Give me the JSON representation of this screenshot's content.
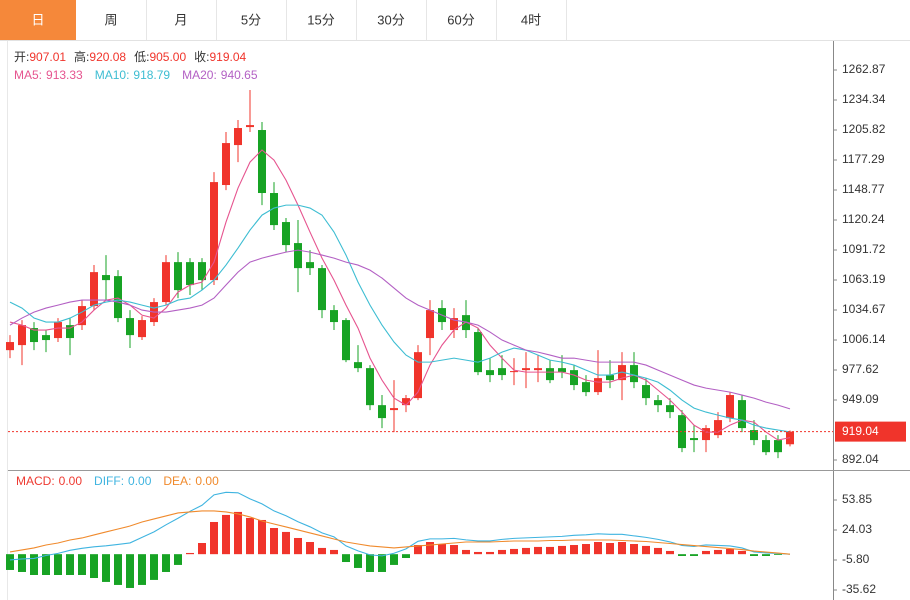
{
  "tabs": {
    "items": [
      "日",
      "周",
      "月",
      "5分",
      "15分",
      "30分",
      "60分",
      "4时"
    ],
    "active": 0,
    "active_color": "#f5883a"
  },
  "chart_data": [
    {
      "type": "candlestick",
      "info": [
        {
          "label": "开:",
          "value": "907.01"
        },
        {
          "label": "高:",
          "value": "920.08"
        },
        {
          "label": "低:",
          "value": "905.00"
        },
        {
          "label": "收:",
          "value": "919.04"
        }
      ],
      "up_color": "#f0342b",
      "down_color": "#17a324",
      "open": [
        996.5,
        1001.3,
        1017.5,
        1010.8,
        1008.0,
        1020.3,
        1020.3,
        1038.4,
        1067.9,
        1066.9,
        1027.0,
        1008.9,
        1023.2,
        1042.2,
        1080.2,
        1080.2,
        1080.2,
        1063.1,
        1153.5,
        1191.5,
        1208.6,
        1205.8,
        1145.9,
        1118.3,
        1098.3,
        1080.2,
        1074.5,
        1034.6,
        1025.1,
        985.1,
        979.4,
        944.2,
        939.5,
        944.2,
        950.9,
        1008.0,
        1036.5,
        1015.6,
        1029.8,
        1013.7,
        977.5,
        979.4,
        975.6,
        977.5,
        977.5,
        979.4,
        979.4,
        977.5,
        966.1,
        956.6,
        972.8,
        968.0,
        982.3,
        963.3,
        949.0,
        944.2,
        934.7,
        912.9,
        911.0,
        915.7,
        931.9,
        949.0,
        920.5,
        911.0,
        911.0,
        907.01
      ],
      "high": [
        1010.8,
        1025.1,
        1023.2,
        1015.6,
        1027.0,
        1027.0,
        1044.1,
        1077.4,
        1086.9,
        1072.6,
        1034.6,
        1028.9,
        1046.0,
        1086.9,
        1089.7,
        1084.0,
        1084.0,
        1165.8,
        1203.9,
        1215.3,
        1243.8,
        1213.4,
        1156.3,
        1122.1,
        1120.2,
        1091.6,
        1077.4,
        1039.3,
        1027.0,
        1001.3,
        982.3,
        953.8,
        968.0,
        953.8,
        1001.3,
        1044.1,
        1044.1,
        1036.5,
        1044.1,
        1017.5,
        988.9,
        991.8,
        988.9,
        994.6,
        991.8,
        987.0,
        991.8,
        982.3,
        972.8,
        996.5,
        987.0,
        994.6,
        994.6,
        969.9,
        953.8,
        950.9,
        939.5,
        925.2,
        925.2,
        937.6,
        956.6,
        953.8,
        930.0,
        915.7,
        915.7,
        920.08
      ],
      "low": [
        988.9,
        982.3,
        996.5,
        994.6,
        1004.2,
        991.8,
        1015.6,
        1034.6,
        1044.1,
        1023.2,
        998.5,
        1006.1,
        1019.4,
        1039.3,
        1046.0,
        1048.9,
        1053.6,
        1058.4,
        1148.7,
        1175.3,
        1203.9,
        1134.4,
        1110.7,
        1089.7,
        1051.7,
        1067.9,
        1027.0,
        1015.6,
        985.1,
        975.6,
        939.5,
        922.4,
        918.6,
        937.6,
        949.0,
        991.8,
        1015.6,
        1008.0,
        1008.0,
        972.8,
        966.1,
        968.0,
        963.3,
        960.4,
        966.1,
        965.2,
        969.9,
        958.5,
        952.8,
        953.8,
        960.4,
        949.0,
        960.4,
        944.2,
        937.6,
        931.9,
        899.5,
        899.5,
        899.5,
        912.9,
        928.1,
        918.6,
        906.2,
        896.7,
        893.8,
        905.0
      ],
      "close": [
        1004.2,
        1020.3,
        1004.2,
        1006.1,
        1023.2,
        1008.0,
        1038.4,
        1070.7,
        1063.1,
        1027.0,
        1010.8,
        1025.1,
        1042.2,
        1080.2,
        1053.6,
        1058.4,
        1063.1,
        1156.3,
        1193.4,
        1207.7,
        1210.5,
        1145.9,
        1115.4,
        1096.4,
        1074.5,
        1074.5,
        1034.6,
        1023.2,
        987.0,
        979.4,
        944.2,
        931.9,
        941.4,
        950.9,
        994.6,
        1034.6,
        1023.2,
        1027.0,
        1015.6,
        975.6,
        972.8,
        972.8,
        976.6,
        979.4,
        979.4,
        968.0,
        975.6,
        963.3,
        956.6,
        969.9,
        968.0,
        982.3,
        966.1,
        950.9,
        944.2,
        937.6,
        903.4,
        911.0,
        922.4,
        930.0,
        953.8,
        922.4,
        911.0,
        899.5,
        899.5,
        919.04
      ],
      "series": [
        {
          "name": "MA5:",
          "value_label": "913.33",
          "color": "#e6548f",
          "values": [
            1023.2,
            1020.3,
            1015.6,
            1015.6,
            1017.5,
            1017.5,
            1023.2,
            1034.6,
            1044.1,
            1046.0,
            1039.3,
            1029.8,
            1027.0,
            1036.5,
            1051.7,
            1058.4,
            1061.2,
            1080.2,
            1118.3,
            1150.6,
            1175.3,
            1186.8,
            1177.2,
            1158.2,
            1134.4,
            1108.8,
            1084.0,
            1063.1,
            1039.3,
            1017.5,
            988.9,
            968.0,
            950.9,
            944.2,
            956.6,
            982.3,
            1001.3,
            1015.6,
            1023.2,
            1017.5,
            1001.3,
            988.9,
            977.5,
            975.6,
            975.6,
            975.6,
            975.6,
            972.8,
            968.0,
            966.1,
            966.1,
            969.9,
            972.8,
            968.0,
            958.5,
            949.0,
            937.6,
            925.2,
            918.6,
            918.6,
            925.2,
            930.0,
            928.1,
            918.6,
            911.0,
            913.33
          ]
        },
        {
          "name": "MA10:",
          "value_label": "918.79",
          "color": "#3dbdd2",
          "values": [
            1042.2,
            1036.5,
            1027.0,
            1023.2,
            1023.2,
            1027.0,
            1032.7,
            1039.3,
            1042.2,
            1044.1,
            1042.2,
            1039.3,
            1036.5,
            1039.3,
            1044.1,
            1046.0,
            1053.6,
            1063.1,
            1077.4,
            1093.6,
            1110.7,
            1124.9,
            1131.6,
            1134.4,
            1134.4,
            1131.6,
            1124.9,
            1108.8,
            1086.9,
            1061.2,
            1039.3,
            1020.3,
            1004.2,
            991.8,
            985.1,
            985.1,
            987.0,
            988.9,
            987.0,
            985.1,
            988.9,
            994.6,
            998.5,
            996.5,
            991.8,
            987.0,
            985.1,
            982.3,
            977.5,
            972.8,
            972.8,
            975.6,
            972.8,
            969.9,
            966.1,
            958.5,
            949.0,
            941.4,
            937.6,
            934.7,
            931.9,
            930.0,
            925.2,
            922.4,
            920.5,
            918.79
          ]
        },
        {
          "name": "MA20:",
          "value_label": "940.65",
          "color": "#b360c4",
          "values": [
            1020.3,
            1027.0,
            1032.7,
            1036.5,
            1039.3,
            1042.2,
            1044.1,
            1044.1,
            1044.1,
            1042.2,
            1039.3,
            1034.6,
            1032.7,
            1032.7,
            1034.6,
            1036.5,
            1039.3,
            1046.0,
            1058.4,
            1070.7,
            1080.2,
            1084.0,
            1086.9,
            1089.7,
            1091.6,
            1089.7,
            1086.9,
            1084.0,
            1080.2,
            1077.4,
            1072.6,
            1065.0,
            1055.5,
            1046.0,
            1039.3,
            1034.6,
            1029.8,
            1025.1,
            1023.2,
            1020.3,
            1013.7,
            1006.1,
            1001.3,
            996.5,
            994.6,
            991.8,
            988.9,
            988.9,
            987.0,
            985.1,
            985.1,
            985.1,
            985.1,
            982.3,
            977.5,
            972.8,
            968.0,
            963.3,
            960.4,
            958.5,
            956.6,
            953.8,
            950.9,
            947.1,
            944.2,
            940.65
          ]
        }
      ],
      "ylim": [
        882.54,
        1286.64
      ],
      "yticks": [
        1262.87,
        1234.34,
        1205.82,
        1177.29,
        1148.77,
        1120.24,
        1091.72,
        1063.19,
        1034.67,
        1006.14,
        977.62,
        949.09,
        892.04
      ],
      "price_line": {
        "value": 919.04,
        "label": "919.04",
        "color": "#f0342b"
      }
    },
    {
      "type": "macd",
      "up_color": "#f0342b",
      "down_color": "#17a324",
      "series": [
        {
          "name": "MACD:",
          "value_label": "0.00",
          "color": "#ee3a31",
          "style": "bar",
          "values": [
            -15.7,
            -17.7,
            -20.7,
            -20.7,
            -20.7,
            -20.7,
            -20.7,
            -23.7,
            -27.6,
            -30.6,
            -33.6,
            -30.6,
            -25.6,
            -17.7,
            -10.7,
            1.2,
            11.1,
            32.0,
            39.0,
            42.0,
            36.0,
            34.0,
            26.0,
            22.1,
            16.1,
            12.1,
            6.2,
            4.2,
            -7.8,
            -13.7,
            -17.7,
            -17.7,
            -10.7,
            -3.8,
            9.1,
            12.1,
            10.1,
            9.1,
            4.2,
            2.2,
            2.2,
            4.2,
            5.2,
            6.2,
            7.2,
            7.2,
            8.2,
            9.1,
            10.1,
            12.1,
            11.1,
            12.1,
            10.1,
            8.2,
            6.2,
            3.2,
            -1.8,
            -1.8,
            3.2,
            4.2,
            5.2,
            3.2,
            -1.8,
            -1.8,
            -0.8,
            0
          ]
        },
        {
          "name": "DIFF:",
          "value_label": "0.00",
          "color": "#3fb4e0",
          "style": "line",
          "values": [
            -5.7,
            -4.7,
            -4.2,
            -1.3,
            0.8,
            3.8,
            5.8,
            7.3,
            8.3,
            9.7,
            11.2,
            16.7,
            22.2,
            29.2,
            35.7,
            42.6,
            48.6,
            59.0,
            61.5,
            61.0,
            55.0,
            50.0,
            43.0,
            38.2,
            32.2,
            27.2,
            21.2,
            17.2,
            8.2,
            3.3,
            -0.7,
            -1.7,
            0.9,
            5.3,
            12.8,
            15.2,
            15.2,
            15.7,
            14.2,
            13.2,
            13.2,
            14.7,
            15.7,
            16.2,
            16.7,
            17.2,
            17.7,
            18.7,
            19.2,
            20.2,
            19.7,
            19.7,
            18.2,
            16.7,
            14.7,
            12.2,
            8.7,
            7.7,
            9.2,
            8.7,
            8.2,
            6.2,
            2.2,
            1.2,
            0.7,
            0
          ]
        },
        {
          "name": "DEA:",
          "value_label": "0.00",
          "color": "#f08a2c",
          "style": "line",
          "values": [
            2.2,
            4.2,
            6.2,
            9.1,
            11.1,
            14.1,
            16.1,
            19.1,
            22.1,
            25.0,
            28.0,
            32.0,
            35.0,
            38.0,
            41.0,
            42.0,
            43.0,
            43.0,
            42.0,
            40.0,
            37.0,
            33.0,
            30.0,
            27.1,
            24.1,
            21.1,
            18.1,
            15.1,
            12.1,
            10.1,
            8.2,
            7.2,
            6.2,
            7.2,
            8.2,
            9.1,
            10.1,
            11.1,
            12.1,
            12.1,
            12.1,
            12.6,
            13.1,
            13.1,
            13.1,
            13.6,
            13.6,
            14.1,
            14.1,
            14.1,
            14.1,
            13.6,
            13.1,
            12.6,
            11.6,
            10.6,
            9.6,
            8.6,
            7.6,
            6.6,
            5.6,
            4.6,
            3.1,
            2.1,
            1.1,
            0
          ]
        }
      ],
      "ylim": [
        -45.56,
        81.69
      ],
      "yticks": [
        53.85,
        24.03,
        {
          "value": -5.8,
          "label": "-5.80"
        },
        -35.62
      ]
    }
  ]
}
